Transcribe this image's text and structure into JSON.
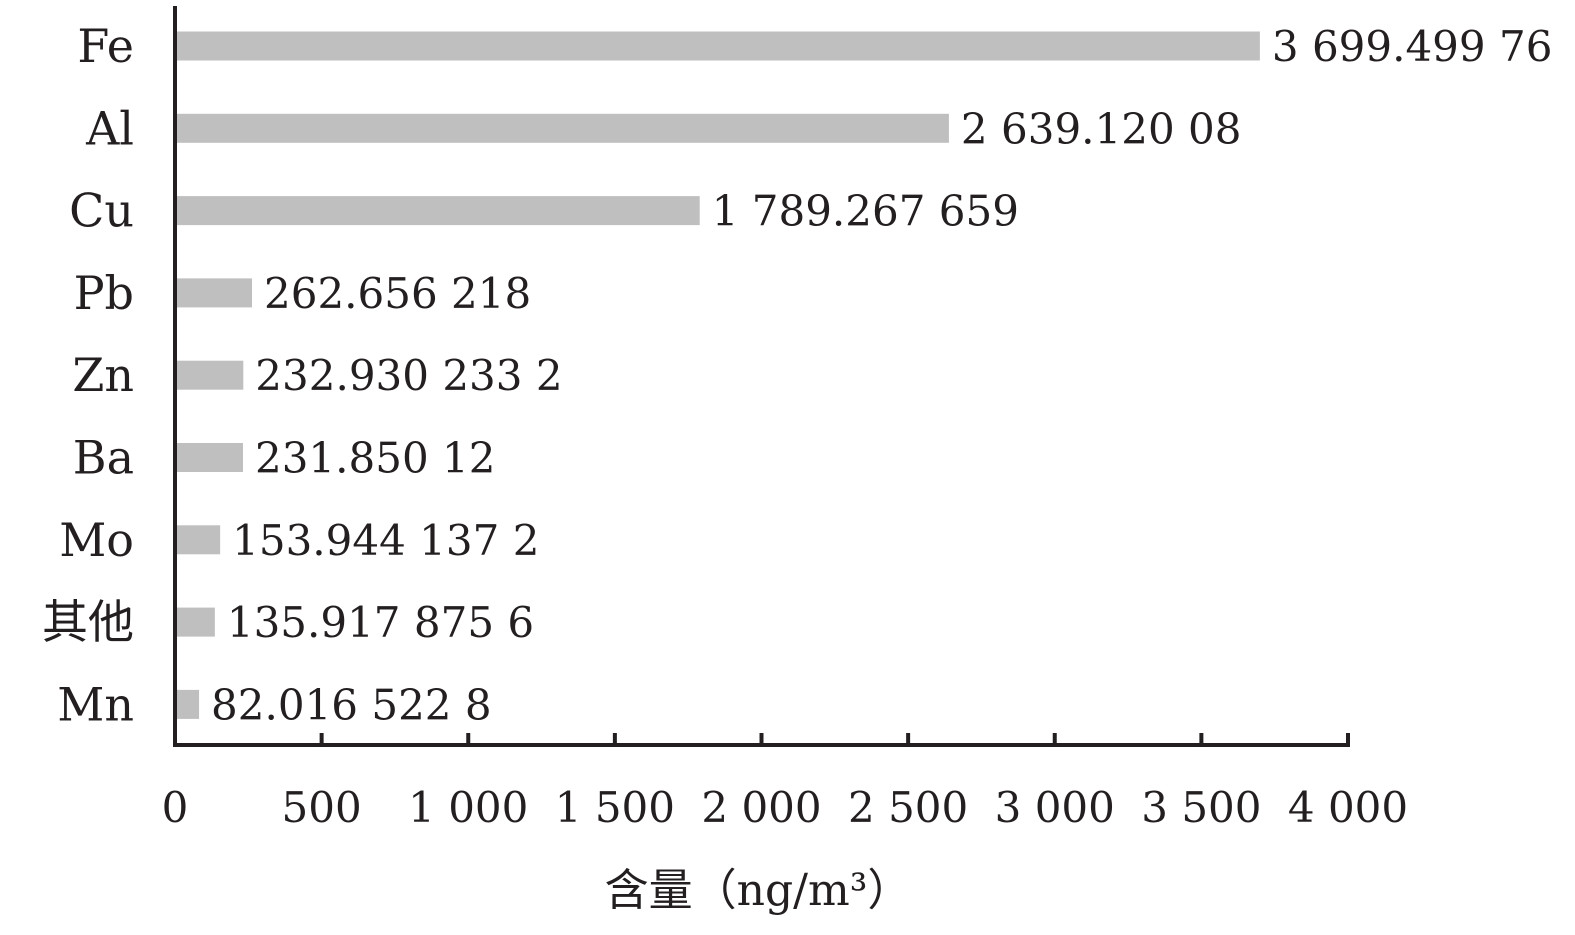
{
  "chart_data": {
    "type": "bar",
    "orientation": "horizontal",
    "categories": [
      "Fe",
      "Al",
      "Cu",
      "Pb",
      "Zn",
      "Ba",
      "Mo",
      "其他",
      "Mn"
    ],
    "values": [
      3699.49976,
      2639.12008,
      1789.267659,
      262.656218,
      232.9302332,
      231.85012,
      153.9441372,
      135.9178756,
      82.0165228
    ],
    "value_labels": [
      "3 699.499 76",
      "2 639.120 08",
      "1 789.267 659",
      "262.656 218",
      "232.930 233 2",
      "231.850 12",
      "153.944 137 2",
      "135.917 875 6",
      "82.016 522 8"
    ],
    "title": "",
    "xlabel": "含量（ng/m³）",
    "ylabel": "",
    "xlim": [
      0,
      4000
    ],
    "xticks": [
      0,
      500,
      1000,
      1500,
      2000,
      2500,
      3000,
      3500,
      4000
    ],
    "xtick_labels": [
      "0",
      "500",
      "1 000",
      "1 500",
      "2 000",
      "2 500",
      "3 000",
      "3 500",
      "4 000"
    ],
    "grid": false,
    "legend": "none",
    "bar_color": "#bfbfbf",
    "axis_color": "#231f20"
  }
}
